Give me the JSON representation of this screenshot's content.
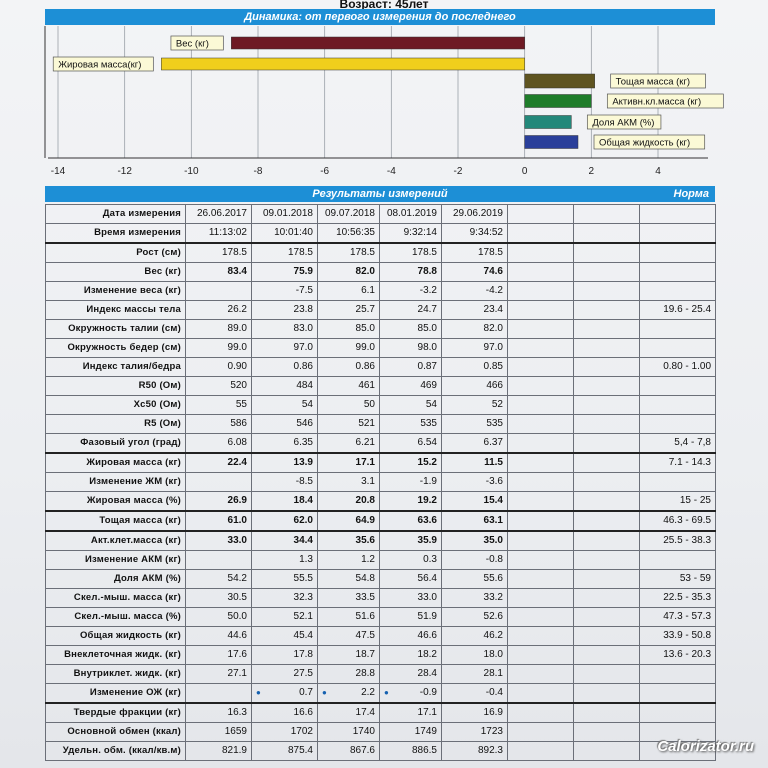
{
  "header": {
    "age": "Возраст: 45лет"
  },
  "dynamics": {
    "title": "Динамика: от первого измерения до последнего",
    "axis_ticks": [
      "-14",
      "-12",
      "-10",
      "-8",
      "-6",
      "-4",
      "-2",
      "0",
      "2",
      "4"
    ],
    "colors": {
      "weight": "#6e1a24",
      "fat": "#f0cf1c",
      "lean": "#5f5420",
      "acm": "#1f7d2a",
      "acm_pct": "#23887a",
      "water": "#2a3f9a"
    }
  },
  "chart_data": {
    "type": "bar",
    "orientation": "horizontal",
    "title": "Динамика: от первого измерения до последнего",
    "categories": [
      "Вес (кг)",
      "Жировая масса(кг)",
      "Тощая масса (кг)",
      "Активн.кл.масса (кг)",
      "Доля АКМ (%)",
      "Общая жидкость (кг)"
    ],
    "values": [
      -8.8,
      -10.9,
      2.1,
      2.0,
      1.4,
      1.6
    ],
    "xlim": [
      -14,
      4
    ],
    "grid": true
  },
  "results": {
    "title": "Результаты измерений",
    "norm_label": "Норма",
    "rows": [
      {
        "label": "Дата измерения",
        "values": [
          "26.06.2017",
          "09.01.2018",
          "09.07.2018",
          "08.01.2019",
          "29.06.2019"
        ],
        "norm": "",
        "bold": false,
        "thick": false
      },
      {
        "label": "Время измерения",
        "values": [
          "11:13:02",
          "10:01:40",
          "10:56:35",
          "9:32:14",
          "9:34:52"
        ],
        "norm": "",
        "bold": false,
        "thick": true
      },
      {
        "label": "Рост (см)",
        "values": [
          "178.5",
          "178.5",
          "178.5",
          "178.5",
          "178.5"
        ],
        "norm": "",
        "bold": false,
        "thick": false
      },
      {
        "label": "Вес (кг)",
        "values": [
          "83.4",
          "75.9",
          "82.0",
          "78.8",
          "74.6"
        ],
        "norm": "",
        "bold": true,
        "thick": false
      },
      {
        "label": "Изменение веса (кг)",
        "values": [
          "",
          "-7.5",
          "6.1",
          "-3.2",
          "-4.2"
        ],
        "norm": "",
        "bold": false,
        "thick": false
      },
      {
        "label": "Индекс массы тела",
        "values": [
          "26.2",
          "23.8",
          "25.7",
          "24.7",
          "23.4"
        ],
        "norm": "19.6 - 25.4",
        "bold": false,
        "thick": false
      },
      {
        "label": "Окружность талии (см)",
        "values": [
          "89.0",
          "83.0",
          "85.0",
          "85.0",
          "82.0"
        ],
        "norm": "",
        "bold": false,
        "thick": false
      },
      {
        "label": "Окружность бедер (см)",
        "values": [
          "99.0",
          "97.0",
          "99.0",
          "98.0",
          "97.0"
        ],
        "norm": "",
        "bold": false,
        "thick": false
      },
      {
        "label": "Индекс талия/бедра",
        "values": [
          "0.90",
          "0.86",
          "0.86",
          "0.87",
          "0.85"
        ],
        "norm": "0.80 - 1.00",
        "bold": false,
        "thick": false
      },
      {
        "label": "R50 (Ом)",
        "values": [
          "520",
          "484",
          "461",
          "469",
          "466"
        ],
        "norm": "",
        "bold": false,
        "thick": false
      },
      {
        "label": "Xc50 (Ом)",
        "values": [
          "55",
          "54",
          "50",
          "54",
          "52"
        ],
        "norm": "",
        "bold": false,
        "thick": false
      },
      {
        "label": "R5 (Ом)",
        "values": [
          "586",
          "546",
          "521",
          "535",
          "535"
        ],
        "norm": "",
        "bold": false,
        "thick": false
      },
      {
        "label": "Фазовый угол (град)",
        "values": [
          "6.08",
          "6.35",
          "6.21",
          "6.54",
          "6.37"
        ],
        "norm": "5,4 - 7,8",
        "bold": false,
        "thick": true
      },
      {
        "label": "Жировая масса (кг)",
        "values": [
          "22.4",
          "13.9",
          "17.1",
          "15.2",
          "11.5"
        ],
        "norm": "7.1 - 14.3",
        "bold": true,
        "thick": false
      },
      {
        "label": "Изменение ЖМ (кг)",
        "values": [
          "",
          "-8.5",
          "3.1",
          "-1.9",
          "-3.6"
        ],
        "norm": "",
        "bold": false,
        "thick": false
      },
      {
        "label": "Жировая масса (%)",
        "values": [
          "26.9",
          "18.4",
          "20.8",
          "19.2",
          "15.4"
        ],
        "norm": "15 - 25",
        "bold": true,
        "thick": true
      },
      {
        "label": "Тощая масса (кг)",
        "values": [
          "61.0",
          "62.0",
          "64.9",
          "63.6",
          "63.1"
        ],
        "norm": "46.3 - 69.5",
        "bold": true,
        "thick": true
      },
      {
        "label": "Акт.клет.масса (кг)",
        "values": [
          "33.0",
          "34.4",
          "35.6",
          "35.9",
          "35.0"
        ],
        "norm": "25.5 - 38.3",
        "bold": true,
        "thick": false
      },
      {
        "label": "Изменение АКМ (кг)",
        "values": [
          "",
          "1.3",
          "1.2",
          "0.3",
          "-0.8"
        ],
        "norm": "",
        "bold": false,
        "thick": false
      },
      {
        "label": "Доля АКМ (%)",
        "values": [
          "54.2",
          "55.5",
          "54.8",
          "56.4",
          "55.6"
        ],
        "norm": "53 - 59",
        "bold": false,
        "thick": false
      },
      {
        "label": "Скел.-мыш. масса (кг)",
        "values": [
          "30.5",
          "32.3",
          "33.5",
          "33.0",
          "33.2"
        ],
        "norm": "22.5 - 35.3",
        "bold": false,
        "thick": false
      },
      {
        "label": "Скел.-мыш. масса (%)",
        "values": [
          "50.0",
          "52.1",
          "51.6",
          "51.9",
          "52.6"
        ],
        "norm": "47.3 - 57.3",
        "bold": false,
        "thick": false
      },
      {
        "label": "Общая жидкость (кг)",
        "values": [
          "44.6",
          "45.4",
          "47.5",
          "46.6",
          "46.2"
        ],
        "norm": "33.9 - 50.8",
        "bold": false,
        "thick": false
      },
      {
        "label": "Внеклеточная жидк. (кг)",
        "values": [
          "17.6",
          "17.8",
          "18.7",
          "18.2",
          "18.0"
        ],
        "norm": "13.6 - 20.3",
        "bold": false,
        "thick": false
      },
      {
        "label": "Внутриклет. жидк. (кг)",
        "values": [
          "27.1",
          "27.5",
          "28.8",
          "28.4",
          "28.1"
        ],
        "norm": "",
        "bold": false,
        "thick": false
      },
      {
        "label": "Изменение ОЖ (кг)",
        "values": [
          "",
          "0.7",
          "2.2",
          "-0.9",
          "-0.4"
        ],
        "norm": "",
        "bold": false,
        "thick": true,
        "drops": [
          false,
          true,
          true,
          true,
          false
        ]
      },
      {
        "label": "Твердые фракции (кг)",
        "values": [
          "16.3",
          "16.6",
          "17.4",
          "17.1",
          "16.9"
        ],
        "norm": "",
        "bold": false,
        "thick": false
      },
      {
        "label": "Основной обмен (ккал)",
        "values": [
          "1659",
          "1702",
          "1740",
          "1749",
          "1723"
        ],
        "norm": "",
        "bold": false,
        "thick": false
      },
      {
        "label": "Удельн. обм. (ккал/кв.м)",
        "values": [
          "821.9",
          "875.4",
          "867.6",
          "886.5",
          "892.3"
        ],
        "norm": "",
        "bold": false,
        "thick": false
      }
    ]
  },
  "watermark": "Calorizator.ru"
}
